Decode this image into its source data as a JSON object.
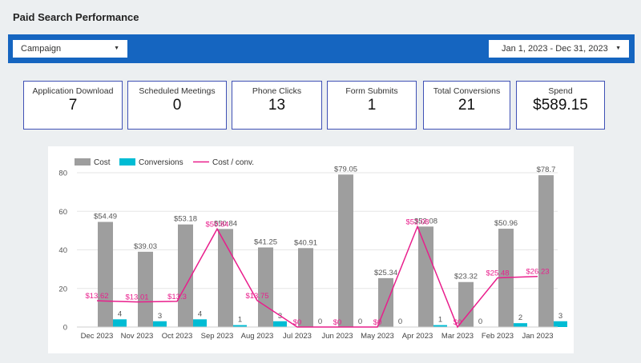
{
  "header": {
    "title": "Paid Search Performance"
  },
  "filters": {
    "campaign_label": "Campaign",
    "date_range": "Jan 1, 2023 - Dec 31, 2023"
  },
  "kpis": [
    {
      "label": "Application Download",
      "value": "7"
    },
    {
      "label": "Scheduled Meetings",
      "value": "0"
    },
    {
      "label": "Phone Clicks",
      "value": "13"
    },
    {
      "label": "Form Submits",
      "value": "1"
    },
    {
      "label": "Total Conversions",
      "value": "21"
    },
    {
      "label": "Spend",
      "value": "$589.15"
    }
  ],
  "colors": {
    "cost": "#9e9e9e",
    "conversions": "#00bcd4",
    "cost_per_conv": "#e91e8c",
    "filter_bar": "#1565c0"
  },
  "chart_data": {
    "type": "bar",
    "categories": [
      "Dec 2023",
      "Nov 2023",
      "Oct 2023",
      "Sep 2023",
      "Aug 2023",
      "Jul 2023",
      "Jun 2023",
      "May 2023",
      "Apr 2023",
      "Mar 2023",
      "Feb 2023",
      "Jan 2023"
    ],
    "ylim": [
      0,
      80
    ],
    "yticks": [
      0,
      20,
      40,
      60,
      80
    ],
    "grid": true,
    "legend_position": "top-left",
    "series": [
      {
        "name": "Cost",
        "type": "bar",
        "values": [
          54.49,
          39.03,
          53.18,
          50.84,
          41.25,
          40.91,
          79.05,
          25.34,
          52.08,
          23.32,
          50.96,
          78.7
        ],
        "labels": [
          "$54.49",
          "$39.03",
          "$53.18",
          "$50.84",
          "$41.25",
          "$40.91",
          "$79.05",
          "$25.34",
          "$52.08",
          "$23.32",
          "$50.96",
          "$78.7"
        ]
      },
      {
        "name": "Conversions",
        "type": "bar",
        "values": [
          4,
          3,
          4,
          1,
          3,
          0,
          0,
          0,
          1,
          0,
          2,
          3
        ],
        "labels": [
          "4",
          "3",
          "4",
          "1",
          "3",
          "0",
          "0",
          "0",
          "1",
          "0",
          "2",
          "3"
        ]
      },
      {
        "name": "Cost / conv.",
        "type": "line",
        "values": [
          13.62,
          13.01,
          13.3,
          50.84,
          13.75,
          0,
          0,
          0,
          52.08,
          0,
          25.48,
          26.23
        ],
        "labels": [
          "$13.62",
          "$13.01",
          "$13.3",
          "$50.84",
          "$13.75",
          "$0",
          "$0",
          "$0",
          "$52.08",
          "$0",
          "$25.48",
          "$26.23"
        ]
      }
    ]
  }
}
